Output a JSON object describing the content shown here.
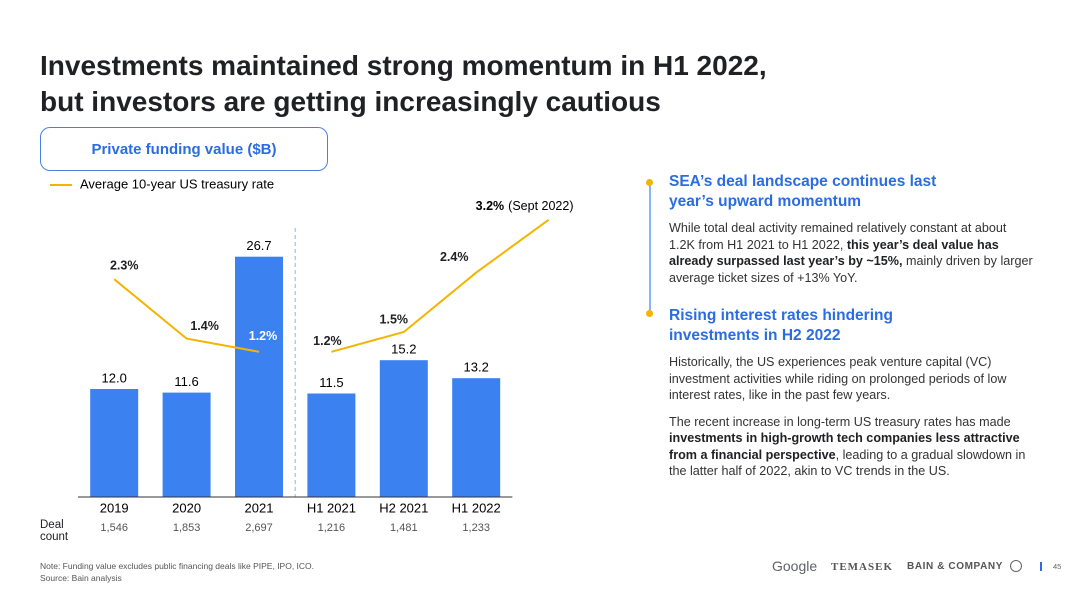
{
  "title": [
    "Investments maintained strong momentum in H1 2022,",
    "but investors are getting increasingly cautious"
  ],
  "chart_data": {
    "type": "combo",
    "title": "Private funding value ($B)",
    "categories": [
      "2019",
      "2020",
      "2021",
      "H1 2021",
      "H2 2021",
      "H1 2022",
      null
    ],
    "row_label": "Deal count",
    "row_values": [
      "1,546",
      "1,853",
      "2,697",
      "1,216",
      "1,481",
      "1,233",
      null
    ],
    "divider_after": "2021",
    "series": [
      {
        "type": "bar",
        "color": "#3b82f0",
        "values": [
          12.0,
          11.6,
          26.7,
          11.5,
          15.2,
          13.2,
          null
        ],
        "value_labels": [
          "12.0",
          "11.6",
          "26.7",
          "11.5",
          "15.2",
          "13.2",
          null
        ]
      },
      {
        "type": "line",
        "name": "Average 10-year US treasury rate",
        "axis": "y2",
        "color": "#f4b400",
        "values": [
          2.3,
          1.4,
          1.2,
          1.2,
          1.5,
          2.4,
          3.2
        ],
        "value_labels": [
          "2.3%",
          "1.4%",
          "1.2%",
          "1.2%",
          "1.5%",
          "2.4%",
          "3.2%"
        ],
        "annotation": "(Sept 2022)"
      }
    ],
    "ylim": [
      0,
      33
    ],
    "y2lim": [
      -1,
      3.5
    ],
    "legend": "top-left",
    "grid": false
  },
  "panel": {
    "sections": [
      {
        "heading": "SEA’s deal landscape continues last year’s upward momentum",
        "paragraphs": [
          [
            "While total deal activity remained relatively constant at about 1.2K from H1 2021 to H1 2022, ",
            "this year’s deal value has already surpassed last year’s by ~15%,",
            " mainly driven by larger average ticket sizes of +13% YoY."
          ]
        ]
      },
      {
        "heading": "Rising interest rates hindering investments in H2 2022",
        "paragraphs": [
          [
            "Historically, the US experiences peak venture capital (VC) investment activities while riding on prolonged periods of low interest rates, like in the past few years."
          ],
          [
            "The recent increase in long-term US treasury rates has made ",
            "investments in high-growth tech companies less attractive from a financial perspective",
            ", leading to a gradual slowdown in the latter half of 2022, akin to VC trends in the US."
          ]
        ]
      }
    ]
  },
  "footer": {
    "note": "Note: Funding value excludes public financing deals like PIPE, IPO, ICO.",
    "source": "Source: Bain analysis",
    "logos": [
      "Google",
      "TEMASEK",
      "BAIN & COMPANY"
    ],
    "page": "45"
  }
}
